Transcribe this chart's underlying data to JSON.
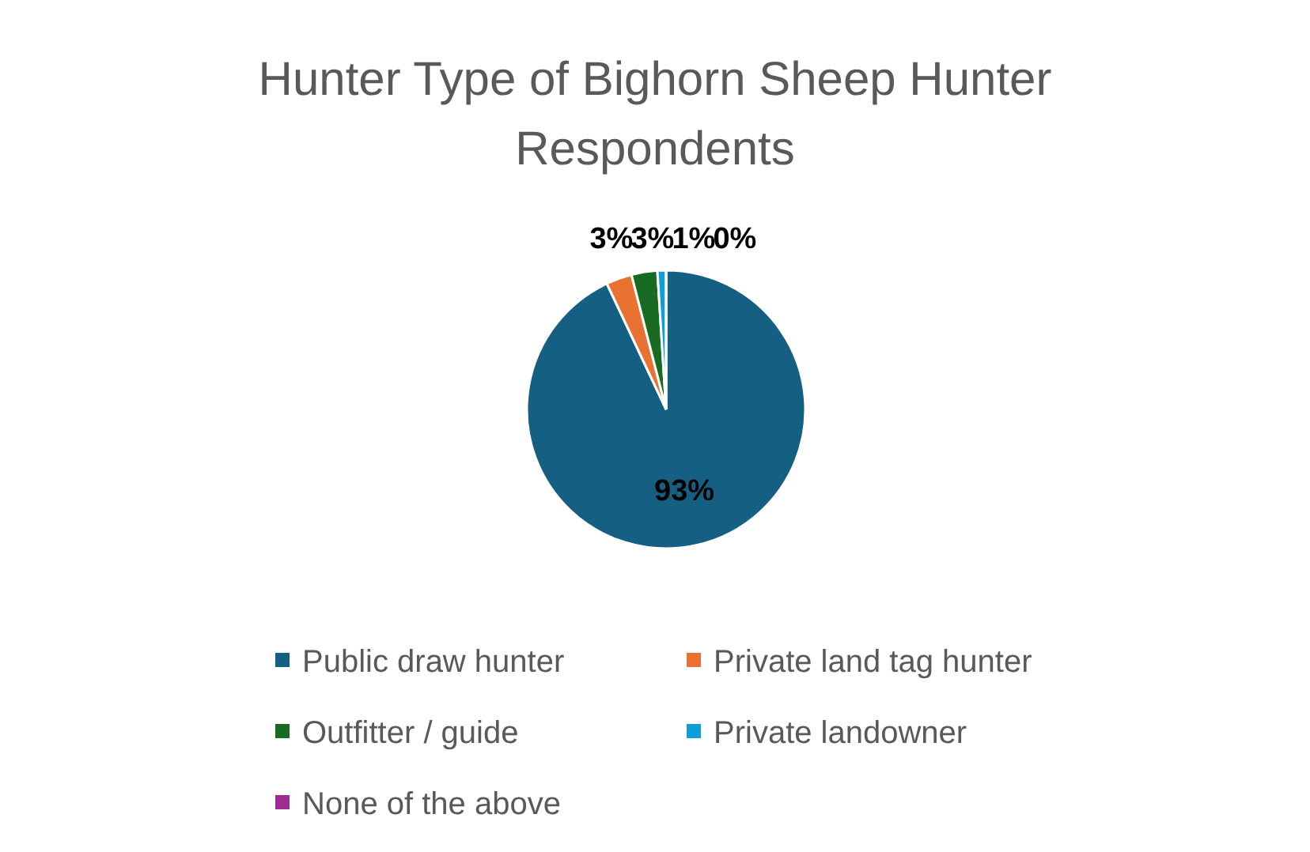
{
  "chart_data": {
    "type": "pie",
    "title": "Hunter Type of Bighorn Sheep Hunter Respondents",
    "categories": [
      "Public draw hunter",
      "Private land tag hunter",
      "Outfitter / guide",
      "Private landowner",
      "None of the above"
    ],
    "values": [
      93,
      3,
      3,
      1,
      0
    ],
    "colors": [
      "#156082",
      "#e97132",
      "#196b24",
      "#0f9ed5",
      "#a02b93"
    ],
    "value_labels": [
      "93%",
      "3%",
      "3%",
      "1%",
      "0%"
    ],
    "legend": "bottom"
  }
}
